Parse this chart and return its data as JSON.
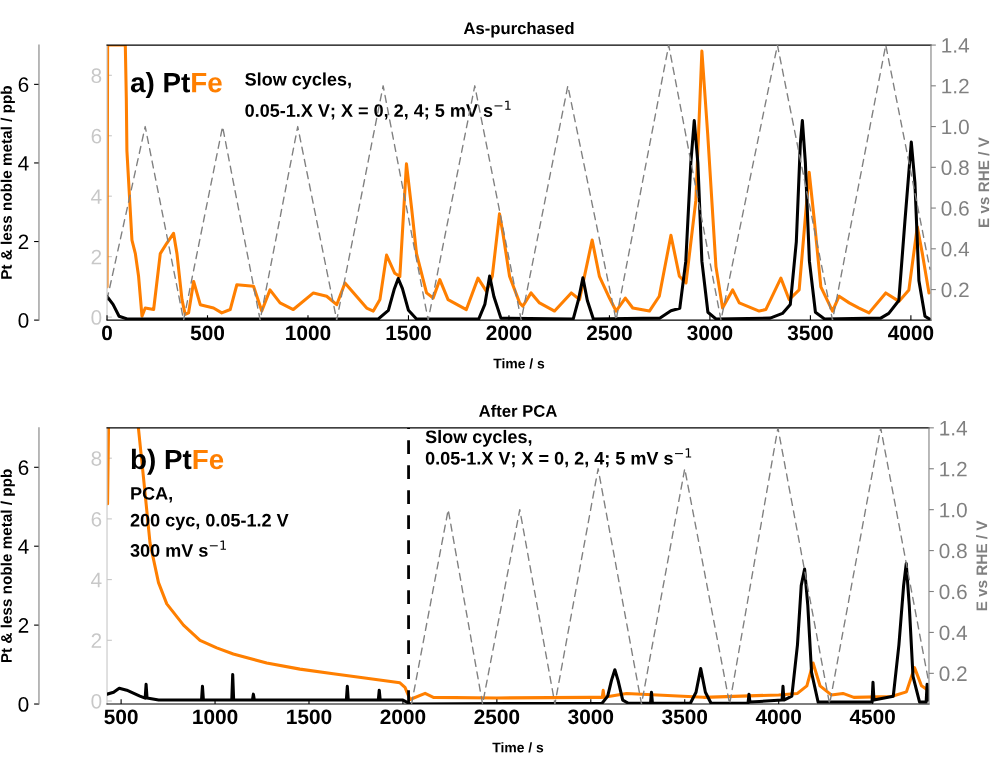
{
  "chart_data": [
    {
      "type": "line",
      "title": "As-purchased",
      "xlabel": "Time / s",
      "ylabel": "Pt & less noble metal / ppb",
      "y2label": "E vs RHE / V",
      "xlim": [
        0,
        4100
      ],
      "xticks": [
        0,
        500,
        1000,
        1500,
        2000,
        2500,
        3000,
        3500,
        4000
      ],
      "ylim": [
        0,
        7
      ],
      "yticks": [
        0,
        2,
        4,
        6
      ],
      "y3lim": [
        -0.1,
        9
      ],
      "y3ticks": [
        0,
        2,
        4,
        6,
        8
      ],
      "y2lim": [
        0.05,
        1.4
      ],
      "y2ticks": [
        0.2,
        0.4,
        0.6,
        0.8,
        {
          "value": 1,
          "label": "1.0"
        },
        1.2,
        1.4
      ],
      "grid": false,
      "legend": false,
      "marker": "none",
      "annotations": [
        "a) Pt",
        "Fe",
        "Slow cycles,",
        "0.05-1.X V; X = 0, 2, 4; 5 mV s$^{−1}$"
      ],
      "series": [
        {
          "color": "#000000",
          "line_style": "solid",
          "x": [
            0,
            30,
            60,
            100,
            1350,
            1400,
            1430,
            1449,
            1470,
            1500,
            1540,
            1850,
            1880,
            1904,
            1925,
            1960,
            2320,
            2345,
            2368,
            2390,
            2420,
            2750,
            2806,
            2850,
            2880,
            2905,
            2922,
            2940,
            2960,
            2990,
            3030,
            3300,
            3361,
            3400,
            3430,
            3450,
            3460,
            3475,
            3495,
            3525,
            3570,
            3850,
            3890,
            3940,
            3970,
            4002,
            4020,
            4040,
            4070,
            4095
          ],
          "values": [
            0.6,
            0.4,
            0.1,
            0.03,
            0.03,
            0.25,
            0.8,
            1.06,
            0.8,
            0.25,
            0.03,
            0.03,
            0.4,
            1.12,
            0.6,
            0.05,
            0.03,
            0.5,
            1.08,
            0.5,
            0.03,
            0.05,
            0.24,
            0.3,
            1.5,
            4.0,
            5.08,
            4.0,
            1.5,
            0.2,
            0.03,
            0.05,
            0.17,
            0.4,
            2.0,
            4.5,
            5.08,
            4.0,
            1.5,
            0.2,
            0.03,
            0.05,
            0.17,
            0.5,
            2.5,
            4.53,
            3.5,
            1.0,
            0.1,
            0.02
          ]
        },
        {
          "color": "#ff7f00",
          "axis": "y3",
          "line_style": "solid",
          "x": [
            0,
            3,
            91,
            96,
            99,
            124,
            141,
            157,
            174,
            190,
            232,
            265,
            298,
            331,
            348,
            373,
            389,
            406,
            431,
            464,
            530,
            571,
            613,
            646,
            729,
            770,
            811,
            861,
            927,
            1027,
            1093,
            1143,
            1184,
            1292,
            1325,
            1358,
            1391,
            1432,
            1457,
            1490,
            1515,
            1540,
            1590,
            1623,
            1656,
            1697,
            1788,
            1846,
            1888,
            1917,
            1953,
            1970,
            2003,
            2053,
            2069,
            2110,
            2152,
            2227,
            2310,
            2351,
            2414,
            2450,
            2500,
            2533,
            2579,
            2616,
            2699,
            2748,
            2806,
            2848,
            2881,
            2930,
            2960,
            2989,
            3030,
            3063,
            3113,
            3146,
            3245,
            3278,
            3353,
            3394,
            3444,
            3494,
            3518,
            3552,
            3610,
            3643,
            3693,
            3742,
            3792,
            3875,
            3941,
            3990,
            4032,
            4057,
            4090
          ],
          "values": [
            1.0,
            9.0,
            9.0,
            7.25,
            5.5,
            2.55,
            2.1,
            1.35,
            0.03,
            0.3,
            0.25,
            2.1,
            2.45,
            2.77,
            2.1,
            0.58,
            0.09,
            0.14,
            1.18,
            0.41,
            0.3,
            0.14,
            0.25,
            1.07,
            1.02,
            0.2,
            0.9,
            0.47,
            0.25,
            0.8,
            0.69,
            0.41,
            1.13,
            0.3,
            0.2,
            0.58,
            2.05,
            1.45,
            1.34,
            5.07,
            3.64,
            2.1,
            0.8,
            0.63,
            1.24,
            0.58,
            0.25,
            1.29,
            0.85,
            1.35,
            3.42,
            2.77,
            1.35,
            0.47,
            0.36,
            0.8,
            0.47,
            0.2,
            0.8,
            0.58,
            2.55,
            1.35,
            0.63,
            0.2,
            0.63,
            0.3,
            0.2,
            0.69,
            2.71,
            1.35,
            1.13,
            3.86,
            8.8,
            6.05,
            1.67,
            0.3,
            0.9,
            0.47,
            0.2,
            0.25,
            1.29,
            0.58,
            0.9,
            4.79,
            3.3,
            1.0,
            0.2,
            0.69,
            0.47,
            0.3,
            0.14,
            0.8,
            0.52,
            0.9,
            2.99,
            2.1,
            0.8
          ]
        },
        {
          "color": "#808080",
          "axis": "y2",
          "line_style": "dashed",
          "x": [
            0,
            190,
            381,
            575,
            762,
            949,
            1143,
            1374,
            1598,
            1830,
            2061,
            2293,
            2533,
            2795,
            3055,
            3336,
            3610,
            3875,
            4095
          ],
          "values": [
            0.15,
            1.0,
            0.05,
            1.0,
            0.05,
            1.0,
            0.05,
            1.2,
            0.05,
            1.2,
            0.05,
            1.2,
            0.05,
            1.4,
            0.05,
            1.4,
            0.05,
            1.4,
            0.3
          ]
        }
      ]
    },
    {
      "type": "line",
      "title": "After PCA",
      "xlabel": "Time / s",
      "ylabel": "Pt & less noble metal / ppb",
      "y2label": "E vs RHE / V",
      "xlim": [
        425,
        4800
      ],
      "xticks": [
        500,
        1000,
        1500,
        2000,
        2500,
        3000,
        3500,
        4000,
        4500
      ],
      "ylim": [
        0,
        7
      ],
      "yticks": [
        0,
        2,
        4,
        6
      ],
      "y3lim": [
        -0.1,
        9
      ],
      "y3ticks": [
        0,
        2,
        4,
        6,
        8
      ],
      "y2lim": [
        0.05,
        1.4
      ],
      "y2ticks": [
        0.2,
        0.4,
        0.6,
        0.8,
        {
          "value": 1,
          "label": "1.0"
        },
        1.2,
        1.4
      ],
      "grid": false,
      "legend": false,
      "marker": "none",
      "ref_lines": [
        {
          "axis": "x",
          "value": 2030,
          "color": "#000000",
          "line_style": "dashed"
        }
      ],
      "annotations": [
        "b) Pt",
        "Fe",
        "PCA,",
        "200 cyc, 0.05-1.2 V",
        "300 mV s$^{−1}$",
        "Slow cycles,",
        "0.05-1.X V; X = 0, 2, 4; 5 mV s$^{−1}$"
      ],
      "series": [
        {
          "color": "#000000",
          "line_style": "solid",
          "x": [
            425,
            460,
            490,
            530,
            600,
            628,
            633,
            638,
            700,
            928,
            933,
            938,
            1089,
            1094,
            1099,
            1199,
            1204,
            1209,
            1699,
            1704,
            1709,
            1869,
            1874,
            1879,
            2000,
            2040,
            3060,
            3090,
            3110,
            3128,
            3145,
            3170,
            3200,
            3318,
            3323,
            3328,
            3530,
            3560,
            3585,
            3610,
            3640,
            3837,
            3842,
            3847,
            4018,
            4023,
            4028,
            4070,
            4100,
            4120,
            4138,
            4155,
            4175,
            4210,
            4497,
            4502,
            4507,
            4610,
            4640,
            4665,
            4679,
            4695,
            4715,
            4750,
            4785,
            4790,
            4795
          ],
          "values": [
            0.25,
            0.3,
            0.4,
            0.35,
            0.2,
            0.15,
            0.5,
            0.15,
            0.1,
            0.1,
            0.45,
            0.1,
            0.1,
            0.75,
            0.1,
            0.1,
            0.25,
            0.1,
            0.1,
            0.45,
            0.1,
            0.1,
            0.35,
            0.1,
            0.1,
            0.0,
            0.02,
            0.2,
            0.6,
            0.87,
            0.6,
            0.1,
            0.02,
            0.02,
            0.3,
            0.02,
            0.02,
            0.3,
            0.9,
            0.3,
            0.02,
            0.02,
            0.25,
            0.05,
            0.1,
            0.45,
            0.1,
            0.2,
            1.5,
            3.0,
            3.42,
            2.5,
            0.8,
            0.05,
            0.05,
            0.55,
            0.1,
            0.2,
            1.5,
            3.0,
            3.56,
            2.5,
            0.7,
            0.05,
            0.05,
            0.5,
            0.1
          ]
        },
        {
          "color": "#ff7f00",
          "axis": "y3",
          "line_style": "solid",
          "x": [
            425,
            428,
            433,
            500,
            592,
            619,
            654,
            699,
            743,
            832,
            920,
            1009,
            1097,
            1275,
            1452,
            1629,
            1807,
            1984,
            2011,
            2038,
            2118,
            2162,
            2500,
            3000,
            3061,
            3066,
            3071,
            3190,
            3600,
            4000,
            4100,
            4150,
            4183,
            4220,
            4280,
            4342,
            4400,
            4600,
            4680,
            4723,
            4760,
            4785,
            4800
          ],
          "values": [
            9.0,
            6.5,
            9.0,
            null,
            9.0,
            7.37,
            5.2,
            3.9,
            3.2,
            2.5,
            2.0,
            1.75,
            1.55,
            1.25,
            1.05,
            0.9,
            0.75,
            0.6,
            0.45,
            0.05,
            0.25,
            0.12,
            0.1,
            0.12,
            0.12,
            0.35,
            0.12,
            0.25,
            0.12,
            0.2,
            0.25,
            0.5,
            1.25,
            0.5,
            0.2,
            0.25,
            0.12,
            0.15,
            0.3,
            1.1,
            0.5,
            0.4,
            0.3
          ]
        },
        {
          "color": "#808080",
          "axis": "y2",
          "line_style": "dashed",
          "x": [
            2046,
            2241,
            2424,
            2622,
            2809,
            3039,
            3270,
            3500,
            3739,
            3996,
            4271,
            4543,
            4800
          ],
          "values": [
            0.05,
            1.0,
            0.05,
            1.0,
            0.05,
            1.2,
            0.05,
            1.2,
            0.05,
            1.4,
            0.05,
            1.4,
            0.15
          ]
        }
      ]
    }
  ]
}
